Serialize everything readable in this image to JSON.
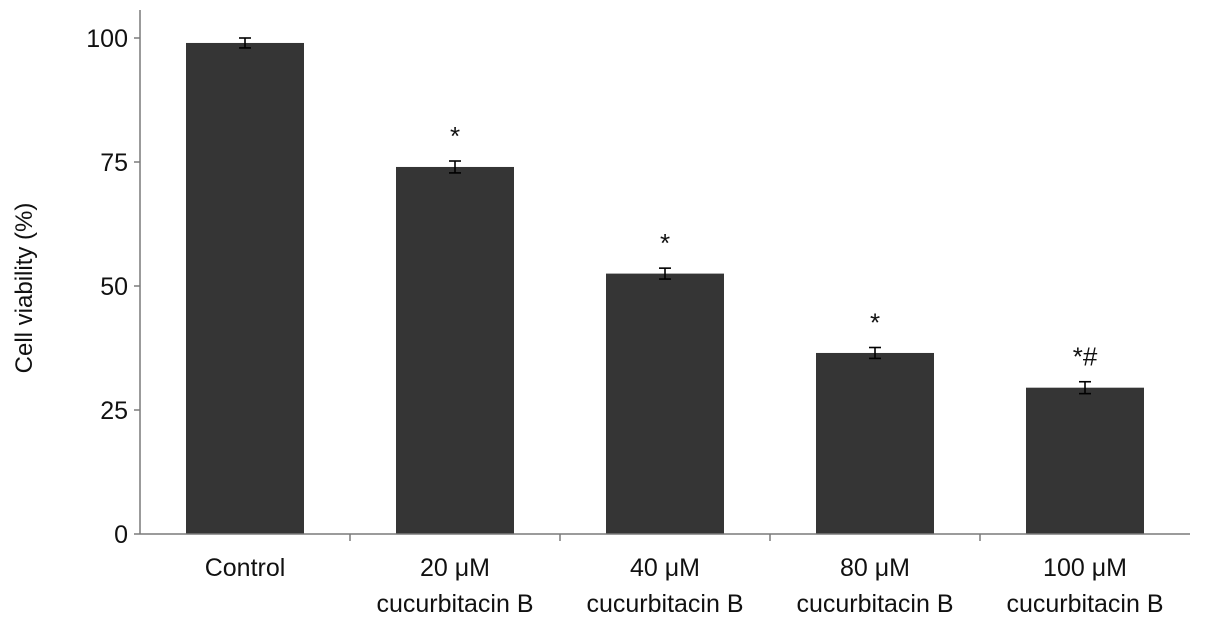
{
  "chart_data": {
    "type": "bar",
    "title": "",
    "xlabel": "",
    "ylabel": "Cell viability (%)",
    "ylim": [
      0,
      100
    ],
    "yticks": [
      0,
      25,
      50,
      75,
      100
    ],
    "grid": false,
    "legend": "none",
    "bar_color": "#353535",
    "categories": [
      [
        "Control"
      ],
      [
        "20 μM",
        "cucurbitacin B"
      ],
      [
        "40 μM",
        "cucurbitacin B"
      ],
      [
        "80 μM",
        "cucurbitacin B"
      ],
      [
        "100 μM",
        "cucurbitacin B"
      ]
    ],
    "values": [
      99,
      74,
      52.5,
      36.5,
      29.5
    ],
    "errors": [
      1,
      1.2,
      1.1,
      1.1,
      1.2
    ],
    "annotations": [
      "",
      "*",
      "*",
      "*",
      "*#"
    ]
  }
}
